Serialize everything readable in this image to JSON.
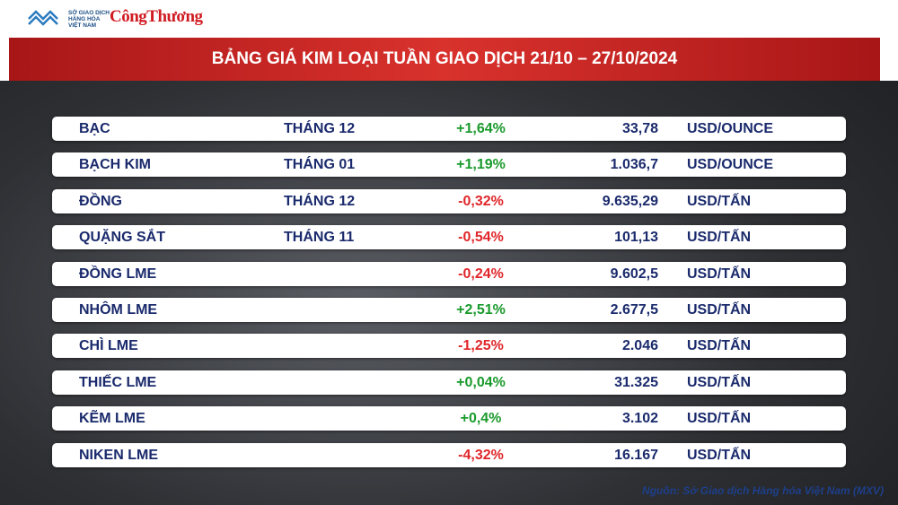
{
  "logo": {
    "exchange": [
      "SỞ GIAO DỊCH",
      "HÀNG HÓA",
      "VIỆT NAM"
    ],
    "newspaper": "CôngThương"
  },
  "title": "BẢNG GIÁ KIM LOẠI TUẦN GIAO DỊCH 21/10 – 27/10/2024",
  "table": {
    "rows": [
      {
        "name": "BẠC",
        "month": "THÁNG 12",
        "change": "+1,64%",
        "price": "33,78",
        "unit": "USD/OUNCE"
      },
      {
        "name": "BẠCH KIM",
        "month": "THÁNG 01",
        "change": "+1,19%",
        "price": "1.036,7",
        "unit": "USD/OUNCE"
      },
      {
        "name": "ĐỒNG",
        "month": "THÁNG 12",
        "change": "-0,32%",
        "price": "9.635,29",
        "unit": "USD/TẤN"
      },
      {
        "name": "QUẶNG SẮT",
        "month": "THÁNG 11",
        "change": "-0,54%",
        "price": "101,13",
        "unit": "USD/TẤN"
      },
      {
        "name": "ĐỒNG LME",
        "change": "-0,24%",
        "price": "9.602,5",
        "unit": "USD/TẤN"
      },
      {
        "name": "NHÔM LME",
        "change": "+2,51%",
        "price": "2.677,5",
        "unit": "USD/TẤN"
      },
      {
        "name": "CHÌ LME",
        "change": "-1,25%",
        "price": "2.046",
        "unit": "USD/TẤN"
      },
      {
        "name": "THIẾC LME",
        "change": "+0,04%",
        "price": "31.325",
        "unit": "USD/TẤN"
      },
      {
        "name": "KẼM LME",
        "change": "+0,4%",
        "price": "3.102",
        "unit": "USD/TẤN"
      },
      {
        "name": "NIKEN LME",
        "change": "-4,32%",
        "price": "16.167",
        "unit": "USD/TẤN"
      }
    ]
  },
  "source": "Nguồn: Sở Giao dịch Hàng hóa Việt Nam (MXV)"
}
